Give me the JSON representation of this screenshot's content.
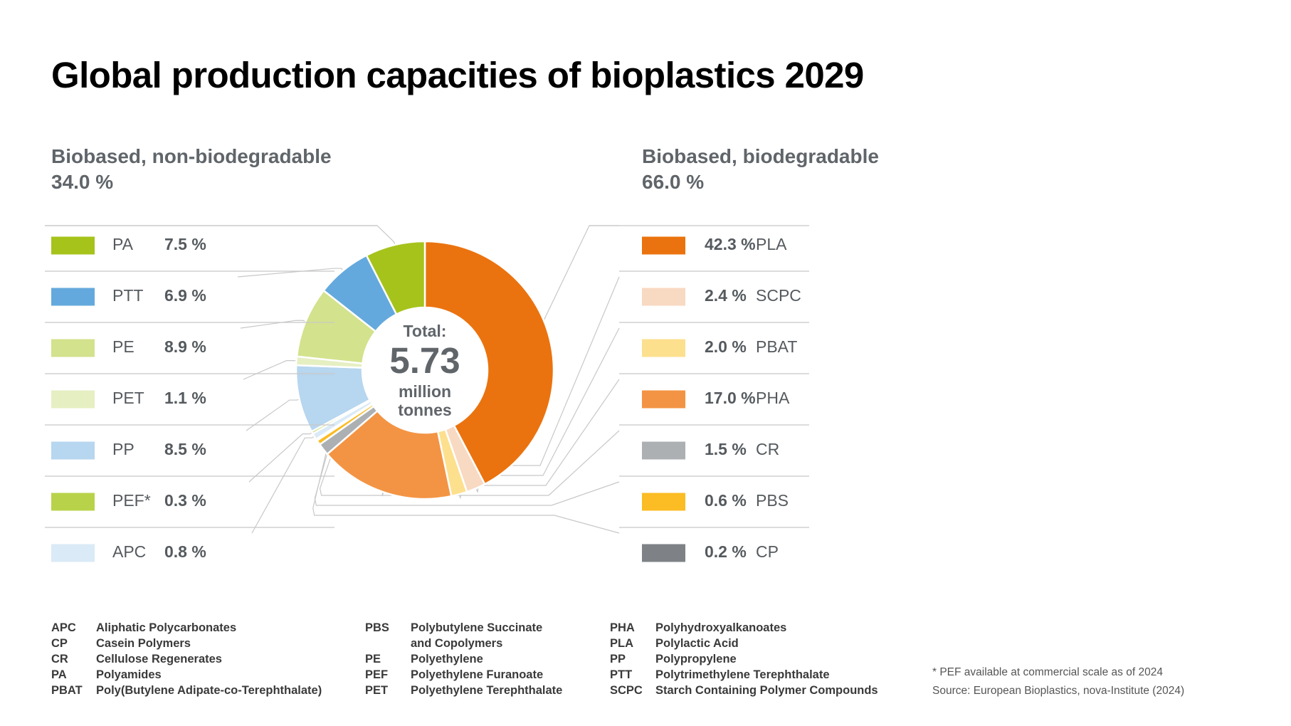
{
  "title": "Global production capacities of bioplastics 2029",
  "groups": {
    "left": {
      "label": "Biobased, non-biodegradable",
      "share": "34.0 %"
    },
    "right": {
      "label": "Biobased, biodegradable",
      "share": "66.0 %"
    }
  },
  "center": {
    "line1": "Total:",
    "value": "5.73",
    "line3": "million",
    "line4": "tonnes"
  },
  "chart_data": {
    "type": "pie",
    "title": "Global production capacities of bioplastics 2029",
    "total_label": "5.73 million tonnes",
    "order": "clockwise from top: biodegradable group then non-biodegradable group",
    "slices": [
      {
        "name": "PLA",
        "value": 42.3,
        "label": "42.3 %",
        "color": "#ea730f",
        "group": "Biobased, biodegradable"
      },
      {
        "name": "SCPC",
        "value": 2.4,
        "label": "2.4 %",
        "color": "#f8d9c2",
        "group": "Biobased, biodegradable"
      },
      {
        "name": "PBAT",
        "value": 2.0,
        "label": "2.0 %",
        "color": "#fde08e",
        "group": "Biobased, biodegradable"
      },
      {
        "name": "PHA",
        "value": 17.0,
        "label": "17.0 %",
        "color": "#f39444",
        "group": "Biobased, biodegradable"
      },
      {
        "name": "CR",
        "value": 1.5,
        "label": "1.5 %",
        "color": "#adb0b3",
        "group": "Biobased, biodegradable"
      },
      {
        "name": "PBS",
        "value": 0.6,
        "label": "0.6 %",
        "color": "#fbbc24",
        "group": "Biobased, biodegradable"
      },
      {
        "name": "CP",
        "value": 0.2,
        "label": "0.2 %",
        "color": "#7e8286",
        "group": "Biobased, biodegradable"
      },
      {
        "name": "APC",
        "value": 0.8,
        "label": "0.8 %",
        "color": "#daeaf6",
        "group": "Biobased, non-biodegradable"
      },
      {
        "name": "PEF*",
        "value": 0.3,
        "label": "0.3 %",
        "color": "#b8d34a",
        "group": "Biobased, non-biodegradable"
      },
      {
        "name": "PP",
        "value": 8.5,
        "label": "8.5 %",
        "color": "#b7d6ef",
        "group": "Biobased, non-biodegradable"
      },
      {
        "name": "PET",
        "value": 1.1,
        "label": "1.1 %",
        "color": "#e5efc2",
        "group": "Biobased, non-biodegradable"
      },
      {
        "name": "PE",
        "value": 8.9,
        "label": "8.9 %",
        "color": "#d3e28c",
        "group": "Biobased, non-biodegradable"
      },
      {
        "name": "PTT",
        "value": 6.9,
        "label": "6.9 %",
        "color": "#64a9dd",
        "group": "Biobased, non-biodegradable"
      },
      {
        "name": "PA",
        "value": 7.5,
        "label": "7.5 %",
        "color": "#a6c31b",
        "group": "Biobased, non-biodegradable"
      }
    ],
    "legend_left": [
      "PA",
      "PTT",
      "PE",
      "PET",
      "PP",
      "PEF*",
      "APC"
    ],
    "legend_right": [
      "PLA",
      "SCPC",
      "PBAT",
      "PHA",
      "CR",
      "PBS",
      "CP"
    ]
  },
  "abbreviations": {
    "col1": [
      {
        "abbr": "APC",
        "full": "Aliphatic Polycarbonates"
      },
      {
        "abbr": "CP",
        "full": "Casein Polymers"
      },
      {
        "abbr": "CR",
        "full": "Cellulose Regenerates"
      },
      {
        "abbr": "PA",
        "full": "Polyamides"
      },
      {
        "abbr": "PBAT",
        "full": "Poly(Butylene Adipate-co-Terephthalate)"
      }
    ],
    "col2": [
      {
        "abbr": "PBS",
        "full": "Polybutylene Succinate"
      },
      {
        "abbr": "",
        "full": "and Copolymers"
      },
      {
        "abbr": "PE",
        "full": "Polyethylene"
      },
      {
        "abbr": "PEF",
        "full": "Polyethylene Furanoate"
      },
      {
        "abbr": "PET",
        "full": "Polyethylene Terephthalate"
      }
    ],
    "col3": [
      {
        "abbr": "PHA",
        "full": "Polyhydroxyalkanoates"
      },
      {
        "abbr": "PLA",
        "full": "Polylactic Acid"
      },
      {
        "abbr": "PP",
        "full": "Polypropylene"
      },
      {
        "abbr": "PTT",
        "full": "Polytrimethylene Terephthalate"
      },
      {
        "abbr": "SCPC",
        "full": "Starch Containing Polymer Compounds"
      }
    ]
  },
  "footnote": "* PEF available at commercial scale as of 2024",
  "source": "Source: European Bioplastics, nova-Institute (2024)"
}
